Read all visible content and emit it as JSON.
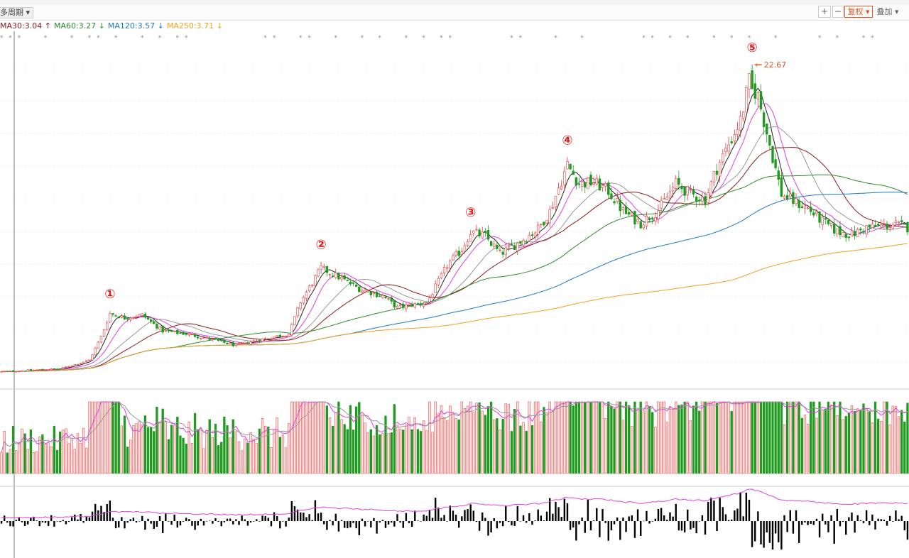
{
  "toolbar": {
    "period_label": "多周期",
    "fuquan_label": "复权",
    "overlay_label": "叠加",
    "zoom_in": "+",
    "zoom_out": "−"
  },
  "ma_legend": [
    {
      "label": "MA30:3.04",
      "arrow": "↑",
      "color": "#8b1a1a"
    },
    {
      "label": "MA60:3.27",
      "arrow": "↓",
      "color": "#2e8b2e"
    },
    {
      "label": "MA120:3.57",
      "arrow": "↓",
      "color": "#1f78c8"
    },
    {
      "label": "MA250:3.71",
      "arrow": "↓",
      "color": "#f0a020"
    }
  ],
  "chart_data": {
    "type": "candlestick",
    "peak_label": "22.67",
    "wave_markers": [
      {
        "label": "①",
        "index": 37
      },
      {
        "label": "②",
        "index": 109
      },
      {
        "label": "③",
        "index": 160
      },
      {
        "label": "④",
        "index": 193
      },
      {
        "label": "⑤",
        "index": 256
      }
    ],
    "anchors": [
      [
        0,
        1.6
      ],
      [
        20,
        1.8
      ],
      [
        30,
        2.4
      ],
      [
        34,
        4.0
      ],
      [
        37,
        5.6
      ],
      [
        42,
        5.3
      ],
      [
        48,
        5.5
      ],
      [
        55,
        4.4
      ],
      [
        63,
        4.2
      ],
      [
        72,
        3.8
      ],
      [
        80,
        3.4
      ],
      [
        88,
        3.8
      ],
      [
        98,
        4.2
      ],
      [
        102,
        6.4
      ],
      [
        106,
        7.7
      ],
      [
        109,
        8.7
      ],
      [
        115,
        8.1
      ],
      [
        122,
        7.3
      ],
      [
        130,
        6.8
      ],
      [
        135,
        6.0
      ],
      [
        140,
        6.2
      ],
      [
        145,
        6.3
      ],
      [
        152,
        8.9
      ],
      [
        157,
        10.0
      ],
      [
        160,
        11.2
      ],
      [
        165,
        10.9
      ],
      [
        170,
        9.7
      ],
      [
        176,
        10.4
      ],
      [
        183,
        11.4
      ],
      [
        187,
        12.6
      ],
      [
        190,
        14.2
      ],
      [
        193,
        15.8
      ],
      [
        197,
        14.5
      ],
      [
        202,
        14.6
      ],
      [
        207,
        14.0
      ],
      [
        212,
        12.6
      ],
      [
        218,
        11.8
      ],
      [
        224,
        12.7
      ],
      [
        230,
        14.5
      ],
      [
        235,
        13.8
      ],
      [
        240,
        13.4
      ],
      [
        244,
        15.6
      ],
      [
        248,
        17.2
      ],
      [
        252,
        18.8
      ],
      [
        255,
        21.5
      ],
      [
        258,
        20.5
      ],
      [
        262,
        17.2
      ],
      [
        266,
        13.8
      ],
      [
        270,
        13.3
      ],
      [
        275,
        12.8
      ],
      [
        280,
        11.9
      ],
      [
        285,
        11.2
      ],
      [
        290,
        11.0
      ],
      [
        295,
        11.5
      ],
      [
        300,
        11.6
      ],
      [
        305,
        11.7
      ],
      [
        309,
        11.5
      ]
    ],
    "ma_final": {
      "ma30": 3.04,
      "ma60": 3.27,
      "ma120": 3.57,
      "ma250": 3.71
    }
  }
}
